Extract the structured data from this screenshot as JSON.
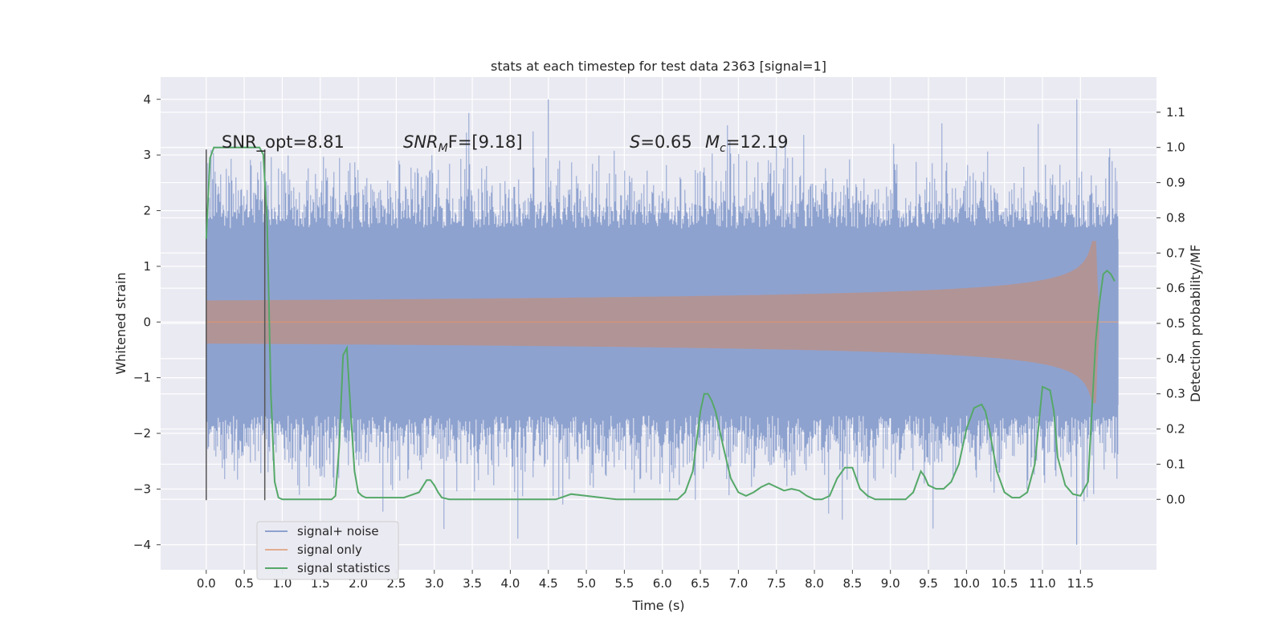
{
  "chart_data": {
    "type": "line",
    "title": "stats at each timestep for test data 2363 [signal=1]",
    "xlabel": "Time (s)",
    "ylabel": "Whitened strain",
    "ylabel_right": "Detection probability/MF",
    "xlim": [
      -0.6,
      12.5
    ],
    "ylim": [
      -4.45,
      4.4
    ],
    "ylim_right": [
      -0.2,
      1.2
    ],
    "x_ticks": [
      "0.0",
      "0.5",
      "1.0",
      "1.5",
      "2.0",
      "2.5",
      "3.0",
      "3.5",
      "4.0",
      "4.5",
      "5.0",
      "5.5",
      "6.0",
      "6.5",
      "7.0",
      "7.5",
      "8.0",
      "8.5",
      "9.0",
      "9.5",
      "10.0",
      "10.5",
      "11.0",
      "11.5"
    ],
    "y_ticks": [
      "−4",
      "−3",
      "−2",
      "−1",
      "0",
      "1",
      "2",
      "3",
      "4"
    ],
    "y_ticks_right": [
      "0.0",
      "0.1",
      "0.2",
      "0.3",
      "0.4",
      "0.5",
      "0.6",
      "0.7",
      "0.8",
      "0.9",
      "1.0",
      "1.1"
    ],
    "grid": true,
    "legend_position": "lower-left",
    "colors": {
      "noise": "#8ea2cf",
      "signal": "#dd8452",
      "stats": "#55a868",
      "background": "#eaeaf2",
      "marker": "#555555"
    },
    "annotations": {
      "snr_opt_pre": "SNR_opt=8.81",
      "snr_mf_main": "SNR",
      "snr_mf_sub": "M",
      "snr_mf_post": "F=[9.18]",
      "s_main": "S",
      "s_post": "=0.65",
      "mc_main": "M",
      "mc_sub": "c",
      "mc_post": "=12.19"
    },
    "vertical_markers": [
      0.0,
      0.77
    ],
    "series": [
      {
        "name": "signal+ noise",
        "axis": "left",
        "style": "noise-band",
        "x_range": [
          0.0,
          12.0
        ],
        "envelope": {
          "upper_typical": 2.4,
          "lower_typical": -2.4,
          "max": 4.0,
          "min": -4.0
        }
      },
      {
        "name": "signal only",
        "axis": "left",
        "style": "chirp",
        "x_range": [
          0.0,
          11.75
        ],
        "envelope": {
          "start_amp": 0.02,
          "peak_amp": 1.45,
          "peak_x": 11.7
        }
      },
      {
        "name": "signal statistics",
        "axis": "right",
        "style": "line",
        "x": [
          0.0,
          0.05,
          0.1,
          0.15,
          0.2,
          0.3,
          0.5,
          0.7,
          0.75,
          0.8,
          0.85,
          0.9,
          0.95,
          1.0,
          1.1,
          1.3,
          1.5,
          1.65,
          1.7,
          1.75,
          1.8,
          1.85,
          1.9,
          1.95,
          2.0,
          2.05,
          2.1,
          2.2,
          2.4,
          2.6,
          2.8,
          2.9,
          2.95,
          3.0,
          3.05,
          3.1,
          3.2,
          3.4,
          3.6,
          3.8,
          4.0,
          4.2,
          4.4,
          4.6,
          4.8,
          5.0,
          5.2,
          5.4,
          5.6,
          5.8,
          6.0,
          6.2,
          6.3,
          6.4,
          6.5,
          6.55,
          6.6,
          6.65,
          6.7,
          6.8,
          6.9,
          7.0,
          7.1,
          7.2,
          7.3,
          7.4,
          7.5,
          7.6,
          7.7,
          7.8,
          7.9,
          8.0,
          8.1,
          8.2,
          8.3,
          8.4,
          8.5,
          8.55,
          8.6,
          8.7,
          8.8,
          9.0,
          9.2,
          9.3,
          9.4,
          9.45,
          9.5,
          9.6,
          9.7,
          9.8,
          9.9,
          10.0,
          10.1,
          10.2,
          10.25,
          10.3,
          10.4,
          10.5,
          10.6,
          10.7,
          10.8,
          10.9,
          11.0,
          11.1,
          11.15,
          11.2,
          11.3,
          11.4,
          11.5,
          11.6,
          11.65,
          11.7,
          11.75,
          11.8,
          11.85,
          11.9,
          11.95
        ],
        "y": [
          0.74,
          0.97,
          1.0,
          1.0,
          1.0,
          1.0,
          1.0,
          1.0,
          0.98,
          0.8,
          0.3,
          0.05,
          0.005,
          0.0,
          0.0,
          0.0,
          0.0,
          0.0,
          0.01,
          0.15,
          0.41,
          0.43,
          0.25,
          0.08,
          0.02,
          0.01,
          0.005,
          0.005,
          0.005,
          0.005,
          0.02,
          0.055,
          0.055,
          0.04,
          0.02,
          0.005,
          0.0,
          0.0,
          0.0,
          0.0,
          0.0,
          0.0,
          0.0,
          0.0,
          0.015,
          0.01,
          0.005,
          0.0,
          0.0,
          0.0,
          0.0,
          0.0,
          0.02,
          0.08,
          0.25,
          0.3,
          0.3,
          0.28,
          0.25,
          0.15,
          0.06,
          0.02,
          0.01,
          0.02,
          0.035,
          0.045,
          0.035,
          0.025,
          0.03,
          0.025,
          0.01,
          0.0,
          0.0,
          0.01,
          0.06,
          0.09,
          0.09,
          0.06,
          0.03,
          0.01,
          0.0,
          0.0,
          0.0,
          0.02,
          0.08,
          0.065,
          0.04,
          0.03,
          0.03,
          0.05,
          0.1,
          0.2,
          0.26,
          0.27,
          0.25,
          0.2,
          0.08,
          0.02,
          0.005,
          0.005,
          0.02,
          0.1,
          0.32,
          0.31,
          0.25,
          0.12,
          0.04,
          0.015,
          0.01,
          0.05,
          0.25,
          0.45,
          0.56,
          0.64,
          0.65,
          0.64,
          0.62
        ]
      }
    ]
  }
}
